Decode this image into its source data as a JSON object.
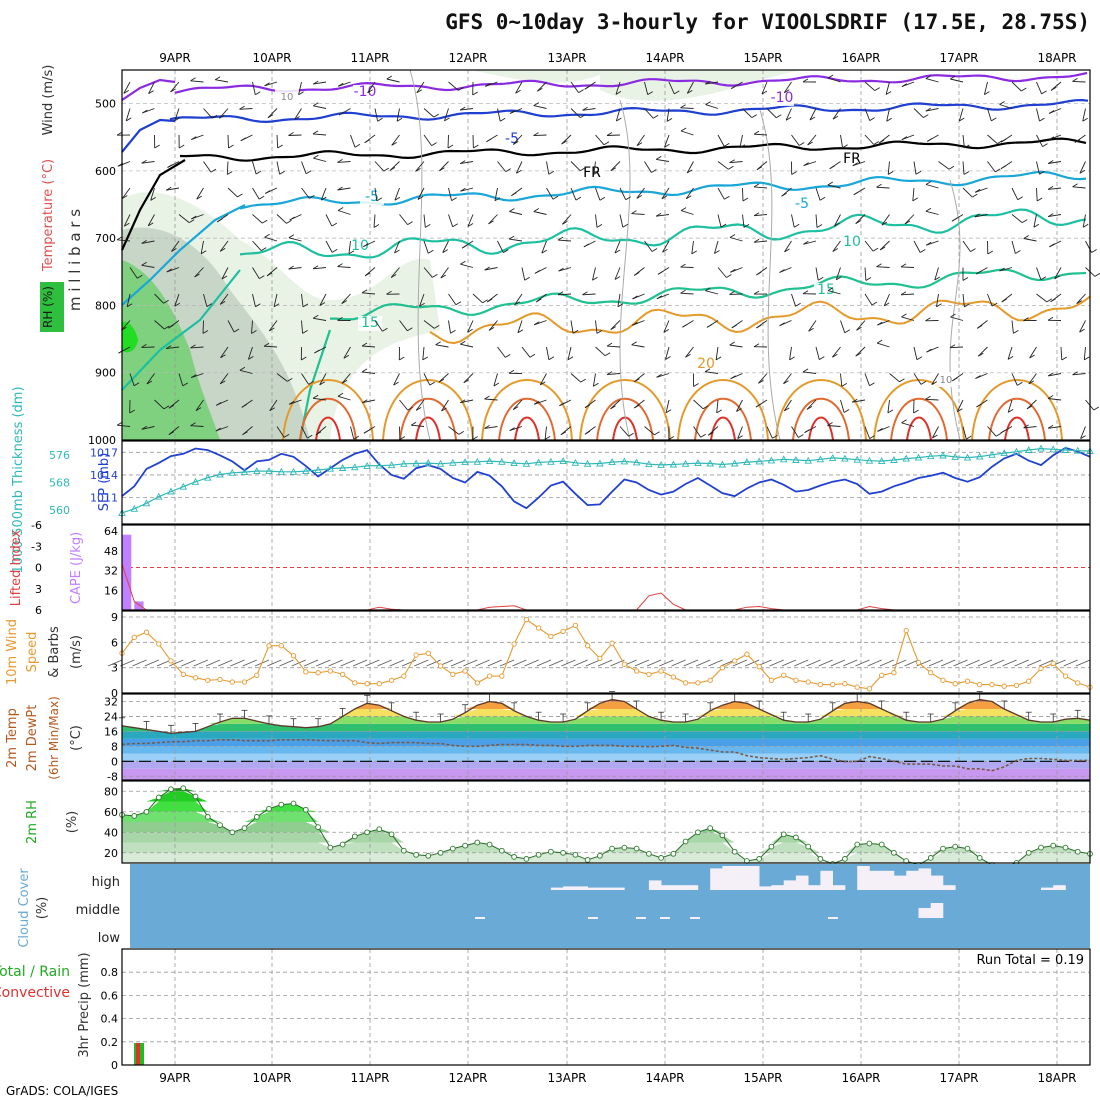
{
  "header": {
    "title": "GFS 0~10day 3-hourly for VIOOLSDRIF (17.5E, 28.75S)",
    "credit": "GrADS: COLA/IGES"
  },
  "colors": {
    "temp_cold": "#8a2be2",
    "temp_mid": "#1f3fd0",
    "freezing": "#000000",
    "temp_warm": "#19a7d8",
    "temp_warmer": "#1cc0a0",
    "temp_hot": "#e49a2a",
    "temp_hottest": "#e0302a",
    "rh_fill": "#2fbf3f",
    "slp": "#2040d0",
    "thickness": "#30b8b8",
    "cape": "#c080ff",
    "lifted_index": "#e04040",
    "wind_speed": "#e89a30",
    "cloud": "#6aaad6",
    "rain": "#22bb22",
    "convective": "#e03030"
  },
  "chart_data": [
    {
      "id": "upper_air",
      "type": "contour",
      "ylabel": "m i l l i b a r s",
      "ylabel_parts": [
        {
          "text": "RH (%)",
          "color": "#1a1a1a"
        },
        {
          "text": "Temperature (°C)",
          "color": "#e05050"
        },
        {
          "text": "Wind (m/s)",
          "color": "#333333"
        }
      ],
      "ylim": [
        1000,
        450
      ],
      "yticks": [
        500,
        600,
        700,
        800,
        900,
        1000
      ],
      "x_dates": [
        "9APR",
        "10APR",
        "11APR",
        "12APR",
        "13APR",
        "14APR",
        "15APR",
        "16APR",
        "17APR",
        "18APR"
      ],
      "contour_labels": [
        "-10",
        "-10",
        "-5",
        "FR",
        "FR",
        "-5",
        "-5",
        "10",
        "10",
        "15",
        "15",
        "20",
        "10",
        "10"
      ]
    },
    {
      "id": "slp_thickness",
      "type": "line",
      "ylabel_left": "1000-500mb Thickness (dm)",
      "ylabel_right": "SLP (mb)",
      "left_ticks": [
        560,
        568,
        576
      ],
      "right_ticks": [
        1011,
        1014,
        1017
      ],
      "slp_series": [
        1011.2,
        1012.5,
        1014.8,
        1015.6,
        1016.5,
        1016.8,
        1017.5,
        1017.3,
        1016.6,
        1015.8,
        1014.6,
        1015.8,
        1016.0,
        1016.8,
        1016.4,
        1015.2,
        1013.8,
        1014.9,
        1016.0,
        1016.8,
        1017.3,
        1015.4,
        1014.0,
        1013.5,
        1014.9,
        1015.3,
        1014.8,
        1013.6,
        1013.0,
        1014.4,
        1013.9,
        1012.5,
        1010.5,
        1009.6,
        1011.0,
        1012.6,
        1013.1,
        1011.5,
        1010.0,
        1010.1,
        1011.8,
        1013.4,
        1013.0,
        1012.0,
        1011.4,
        1011.8,
        1012.8,
        1013.6,
        1012.6,
        1011.6,
        1011.2,
        1012.2,
        1013.0,
        1013.4,
        1012.7,
        1011.8,
        1012.0,
        1012.6,
        1013.1,
        1013.4,
        1012.8,
        1011.5,
        1011.8,
        1012.5,
        1013.0,
        1013.6,
        1013.9,
        1014.3,
        1013.6,
        1013.1,
        1013.7,
        1015.1,
        1016.2,
        1016.8,
        1015.9,
        1015.3,
        1016.6,
        1017.6,
        1017.1,
        1016.4
      ],
      "thickness_series": [
        559.2,
        560.4,
        562.0,
        563.9,
        565.4,
        566.8,
        568.2,
        569.4,
        570.3,
        570.8,
        571.0,
        571.3,
        571.3,
        571.1,
        571.1,
        571.3,
        571.6,
        572.0,
        572.2,
        572.4,
        572.8,
        572.9,
        573.0,
        573.4,
        573.5,
        573.6,
        573.4,
        573.7,
        573.9,
        574.0,
        574.2,
        574.0,
        573.6,
        573.4,
        573.8,
        574.0,
        574.2,
        573.7,
        573.4,
        573.5,
        573.9,
        574.1,
        573.8,
        573.3,
        573.1,
        573.2,
        573.4,
        573.6,
        573.5,
        573.2,
        573.5,
        573.9,
        574.1,
        574.4,
        574.7,
        574.5,
        574.3,
        574.7,
        575.1,
        574.9,
        574.6,
        574.3,
        574.2,
        574.5,
        574.9,
        575.2,
        575.6,
        575.8,
        575.4,
        575.2,
        575.5,
        576.0,
        576.5,
        576.9,
        577.4,
        577.8,
        577.6,
        577.4,
        577.2,
        577.1
      ]
    },
    {
      "id": "cape_li",
      "type": "bar",
      "ylabel_left": "Lifted Index",
      "ylabel_right": "CAPE (J/kg)",
      "li_ticks": [
        -6,
        -3,
        0,
        3,
        6
      ],
      "cape_ticks": [
        16,
        32,
        48,
        64
      ],
      "cape_series": [
        61,
        7,
        0,
        0,
        0,
        0,
        0,
        0,
        0,
        0,
        0,
        0,
        0,
        0,
        0,
        0,
        0,
        0,
        0,
        0,
        0,
        0,
        0,
        0,
        0,
        0,
        0,
        0,
        0,
        0,
        0,
        0,
        0,
        0,
        0,
        0,
        0,
        0,
        0,
        0,
        0,
        0,
        0,
        0,
        0,
        0,
        0,
        0,
        0,
        0,
        0,
        0,
        0,
        0,
        0,
        0,
        0,
        0,
        0,
        0,
        0,
        0,
        0,
        0,
        0,
        0,
        0,
        0,
        0,
        0,
        0,
        0,
        0,
        0,
        0,
        0,
        0,
        0,
        0,
        0
      ],
      "li_series": [
        -0.5,
        4.8,
        6,
        6,
        6,
        6,
        6,
        6,
        6,
        6,
        6,
        6,
        6,
        6,
        6,
        6,
        6,
        6,
        6,
        6,
        6,
        5.6,
        5.9,
        6,
        6,
        6,
        6,
        6,
        6,
        6,
        5.6,
        5.5,
        5.4,
        6,
        6,
        6,
        6,
        6,
        6,
        6,
        6,
        6,
        6,
        4.0,
        3.6,
        5.2,
        6,
        6,
        6,
        6,
        6,
        5.6,
        5.5,
        5.8,
        6,
        6,
        6,
        6,
        6,
        6,
        6,
        5.5,
        5.8,
        6,
        6,
        6,
        6,
        6,
        6,
        6,
        6,
        6,
        6,
        6,
        6,
        6,
        6,
        6,
        6,
        6
      ]
    },
    {
      "id": "wind10m",
      "type": "line",
      "ylabel": "10m Wind Speed (m/s) & Barbs",
      "yticks": [
        0,
        3,
        6,
        9
      ],
      "ylim": [
        0,
        9
      ],
      "speed_series": [
        4.7,
        6.6,
        7.2,
        5.8,
        3.8,
        2.2,
        1.8,
        1.5,
        1.6,
        1.3,
        1.3,
        2.1,
        5.6,
        5.6,
        4.4,
        2.5,
        2.4,
        2.6,
        2.2,
        1.2,
        1.1,
        1.1,
        1.5,
        2.0,
        4.5,
        4.7,
        3.2,
        2.2,
        2.6,
        1.2,
        2.0,
        2.0,
        5.8,
        8.7,
        7.7,
        6.7,
        7.3,
        8.0,
        5.6,
        4.1,
        5.9,
        3.4,
        2.6,
        2.2,
        2.6,
        1.9,
        1.2,
        1.2,
        1.5,
        3.0,
        3.8,
        4.6,
        3.1,
        1.5,
        2.1,
        1.5,
        1.3,
        1.0,
        1.0,
        1.1,
        0.7,
        0.5,
        2.1,
        2.4,
        7.4,
        3.6,
        2.4,
        1.5,
        1.1,
        1.4,
        1.0,
        1.0,
        0.8,
        0.9,
        1.4,
        2.9,
        3.5,
        2.0,
        1.2,
        0.7
      ]
    },
    {
      "id": "temp2m",
      "type": "area",
      "ylabel": "2m Temp 2m DewPt (6hr Min/Max) (°C)",
      "yticks": [
        -8,
        0,
        8,
        16,
        24,
        32
      ],
      "ylim": [
        -10,
        36
      ],
      "temp_series": [
        19,
        18,
        17,
        16,
        15,
        15.5,
        16,
        18.5,
        21,
        23,
        23,
        21.5,
        20,
        19,
        18.5,
        18,
        18.5,
        20,
        24,
        28,
        31,
        30,
        27,
        24,
        22,
        21,
        21,
        22.5,
        26,
        30,
        32,
        31,
        27,
        24,
        22,
        21,
        21,
        22.5,
        27,
        31,
        33,
        32,
        28,
        24,
        22,
        21,
        21,
        22.5,
        27,
        30,
        32,
        31,
        28,
        25,
        22,
        21,
        21,
        22.5,
        27,
        31,
        32,
        31,
        28,
        25,
        22,
        21,
        21,
        22.5,
        27,
        31,
        33,
        32,
        28,
        25,
        22,
        21,
        21,
        22.5,
        23,
        22
      ],
      "dewpt_series": [
        9,
        9.5,
        9.5,
        10,
        10.5,
        10.5,
        11,
        11,
        11.5,
        11.5,
        11,
        11,
        11,
        11.5,
        11.5,
        11.5,
        11.2,
        11,
        11,
        11,
        10,
        9.5,
        10,
        10,
        10,
        9.5,
        9.5,
        8.5,
        8,
        8,
        8.5,
        9,
        9,
        9,
        8.5,
        8.5,
        8,
        8,
        8.5,
        8.5,
        8.5,
        8,
        8,
        7.8,
        8,
        8.5,
        7.5,
        7,
        6,
        5,
        5,
        3,
        2,
        1.5,
        1,
        1.5,
        2,
        3,
        1.2,
        -0.2,
        0,
        2.5,
        1.5,
        0,
        -1.5,
        -1.5,
        -1.5,
        -2.5,
        -2.5,
        -4,
        -4,
        -5,
        -3,
        0.5,
        1.5,
        1.5,
        1,
        0.5,
        0.5,
        0.5
      ]
    },
    {
      "id": "rh2m",
      "type": "area",
      "ylabel": "2m RH (%)",
      "yticks": [
        20,
        40,
        60,
        80
      ],
      "ylim": [
        10,
        90
      ],
      "rh_series": [
        57,
        56,
        60,
        74,
        82,
        83,
        75,
        55,
        47,
        40,
        44,
        55,
        63,
        67,
        68,
        62,
        45,
        25,
        28,
        36,
        40,
        43,
        38,
        22,
        18,
        17,
        20,
        24,
        27,
        30,
        28,
        22,
        16,
        14,
        18,
        21,
        20,
        18,
        13,
        17,
        24,
        25,
        24,
        19,
        15,
        19,
        31,
        40,
        44,
        37,
        21,
        12,
        14,
        26,
        38,
        35,
        26,
        14,
        9,
        14,
        28,
        29,
        28,
        20,
        12,
        8,
        15,
        24,
        26,
        24,
        15,
        8,
        6,
        10,
        20,
        25,
        27,
        25,
        21,
        19
      ]
    },
    {
      "id": "cloud",
      "type": "heatmap",
      "ylabel": "Cloud Cover (%)",
      "rows": [
        "high",
        "middle",
        "low"
      ],
      "high_series": [
        0,
        0,
        0,
        0,
        0,
        0,
        0,
        0,
        0,
        0,
        0,
        0,
        0,
        0,
        0,
        0,
        0,
        0,
        0,
        0,
        0,
        0,
        0,
        0,
        0,
        0,
        0,
        0,
        0,
        0,
        0,
        0,
        0,
        0,
        0,
        10,
        15,
        15,
        10,
        10,
        10,
        0,
        0,
        40,
        20,
        20,
        20,
        0,
        90,
        100,
        100,
        100,
        15,
        20,
        40,
        60,
        20,
        80,
        20,
        0,
        100,
        80,
        80,
        60,
        80,
        90,
        60,
        20,
        0,
        0,
        0,
        0,
        0,
        0,
        0,
        10,
        20,
        0,
        0,
        0
      ],
      "mid_series": [
        0,
        0,
        0,
        0,
        0,
        0,
        0,
        0,
        0,
        0,
        0,
        0,
        0,
        0,
        0,
        0,
        0,
        0,
        0,
        0,
        0,
        0,
        0,
        0,
        0,
        0,
        0,
        0,
        0,
        0,
        0,
        0,
        0,
        0,
        0,
        0,
        0,
        0,
        0,
        0,
        0,
        0,
        0,
        0,
        0,
        0,
        0,
        0,
        0,
        0,
        0,
        0,
        0,
        0,
        0,
        0,
        0,
        0,
        0,
        0,
        0,
        0,
        0,
        0,
        0,
        40,
        60,
        0,
        0,
        0,
        0,
        0,
        0,
        0,
        0,
        0,
        0,
        0,
        0,
        0
      ],
      "low_series": [
        0,
        0,
        0,
        0,
        0,
        0,
        0,
        0,
        0,
        0,
        0,
        0,
        0,
        0,
        0,
        0,
        0,
        0,
        0,
        0,
        0,
        0,
        0,
        0,
        0,
        0,
        0,
        0,
        0,
        0,
        0,
        0,
        0,
        0,
        0,
        0,
        0,
        0,
        0,
        0,
        0,
        0,
        0,
        0,
        0,
        0,
        0,
        0,
        0,
        0,
        0,
        0,
        0,
        0,
        0,
        0,
        0,
        0,
        0,
        0,
        0,
        0,
        0,
        0,
        0,
        0,
        0,
        0,
        0,
        0,
        0,
        0,
        0,
        0,
        0,
        0,
        0,
        0,
        0,
        0
      ]
    },
    {
      "id": "precip",
      "type": "bar",
      "ylabel_left": "Total / Rain",
      "ylabel_left2": "Convective",
      "ylabel": "3hr Precip (mm)",
      "yticks": [
        0,
        0.2,
        0.4,
        0.6,
        0.8
      ],
      "ylim": [
        0,
        1
      ],
      "run_total_label": "Run Total = 0.19",
      "rain_series": [
        0.19,
        0,
        0,
        0,
        0,
        0,
        0,
        0,
        0,
        0,
        0,
        0,
        0,
        0,
        0,
        0,
        0,
        0,
        0,
        0,
        0,
        0,
        0,
        0,
        0,
        0,
        0,
        0,
        0,
        0,
        0,
        0,
        0,
        0,
        0,
        0,
        0,
        0,
        0,
        0,
        0,
        0,
        0,
        0,
        0,
        0,
        0,
        0,
        0,
        0,
        0,
        0,
        0,
        0,
        0,
        0,
        0,
        0,
        0,
        0,
        0,
        0,
        0,
        0,
        0,
        0,
        0,
        0,
        0,
        0,
        0,
        0,
        0,
        0,
        0,
        0,
        0,
        0,
        0,
        0
      ],
      "conv_series": [
        0.19,
        0,
        0,
        0,
        0,
        0,
        0,
        0,
        0,
        0,
        0,
        0,
        0,
        0,
        0,
        0,
        0,
        0,
        0,
        0,
        0,
        0,
        0,
        0,
        0,
        0,
        0,
        0,
        0,
        0,
        0,
        0,
        0,
        0,
        0,
        0,
        0,
        0,
        0,
        0,
        0,
        0,
        0,
        0,
        0,
        0,
        0,
        0,
        0,
        0,
        0,
        0,
        0,
        0,
        0,
        0,
        0,
        0,
        0,
        0,
        0,
        0,
        0,
        0,
        0,
        0,
        0,
        0,
        0,
        0,
        0,
        0,
        0,
        0,
        0,
        0,
        0,
        0,
        0,
        0
      ]
    }
  ]
}
